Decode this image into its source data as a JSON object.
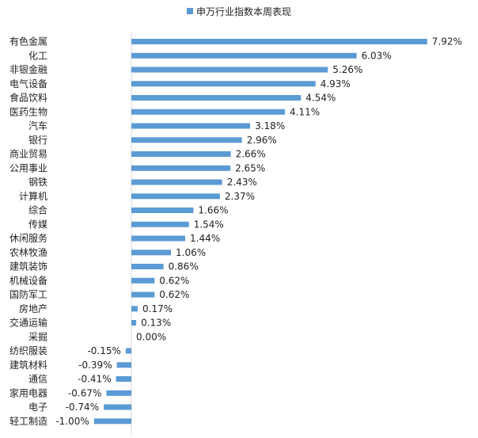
{
  "chart_data": {
    "type": "bar",
    "orientation": "horizontal",
    "series": [
      {
        "name": "申万行业指数本周表现",
        "color": "#5b9bd5",
        "categories": [
          "有色金属",
          "化工",
          "非银金融",
          "电气设备",
          "食品饮料",
          "医药生物",
          "汽车",
          "银行",
          "商业贸易",
          "公用事业",
          "钢铁",
          "计算机",
          "综合",
          "传媒",
          "休闲服务",
          "农林牧渔",
          "建筑装饰",
          "机械设备",
          "国防军工",
          "房地产",
          "交通运输",
          "采掘",
          "纺织服装",
          "建筑材料",
          "通信",
          "家用电器",
          "电子",
          "轻工制造"
        ],
        "values": [
          7.92,
          6.03,
          5.26,
          4.93,
          4.54,
          4.11,
          3.18,
          2.96,
          2.66,
          2.65,
          2.43,
          2.37,
          1.66,
          1.54,
          1.44,
          1.06,
          0.86,
          0.62,
          0.62,
          0.17,
          0.13,
          0.0,
          -0.15,
          -0.39,
          -0.41,
          -0.67,
          -0.74,
          -1.0
        ],
        "value_labels": [
          "7.92%",
          "6.03%",
          "5.26%",
          "4.93%",
          "4.54%",
          "4.11%",
          "3.18%",
          "2.96%",
          "2.66%",
          "2.65%",
          "2.43%",
          "2.37%",
          "1.66%",
          "1.54%",
          "1.44%",
          "1.06%",
          "0.86%",
          "0.62%",
          "0.62%",
          "0.17%",
          "0.13%",
          "0.00%",
          "-0.15%",
          "-0.39%",
          "-0.41%",
          "-0.67%",
          "-0.74%",
          "-1.00%"
        ]
      }
    ],
    "legend": "top-center",
    "grid": false,
    "unit": "%"
  }
}
